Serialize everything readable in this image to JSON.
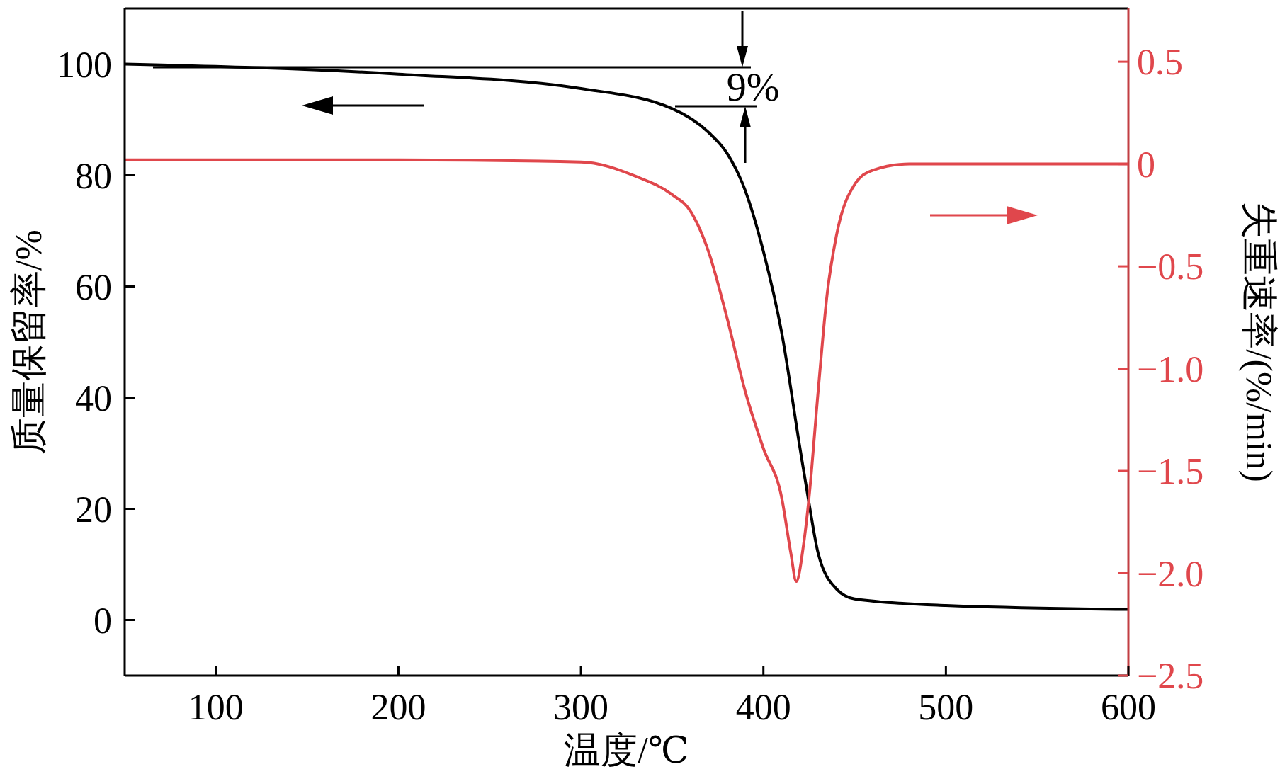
{
  "chart_data": {
    "type": "line",
    "xlabel": "温度/℃",
    "ylabel": "质量保留率/%",
    "y2label": "失重速率/(%/min)",
    "x": [
      50,
      200,
      300,
      350,
      370,
      380,
      390,
      400,
      410,
      420,
      425,
      430,
      440,
      450,
      500,
      600
    ],
    "series": [
      {
        "color": "#000000",
        "values": [
          100,
          98.2,
          95.6,
          92,
          87.7,
          84,
          77.3,
          66.3,
          51.7,
          31,
          21,
          12,
          5.6,
          3.8,
          2.6,
          1.9
        ]
      },
      {
        "color": "#e0474c",
        "axis": "y2",
        "x": [
          50,
          200,
          300,
          330,
          350,
          360,
          370,
          380,
          390,
          400,
          410,
          415,
          418,
          422,
          425,
          430,
          435,
          440,
          450,
          460,
          480,
          600
        ],
        "values": [
          0.02,
          0.02,
          0.01,
          -0.06,
          -0.15,
          -0.23,
          -0.43,
          -0.75,
          -1.11,
          -1.39,
          -1.63,
          -1.9,
          -2.04,
          -1.86,
          -1.63,
          -1.11,
          -0.63,
          -0.35,
          -0.1,
          -0.03,
          0.0,
          0.0
        ]
      }
    ],
    "xlim": [
      50,
      600
    ],
    "xticks": [
      100,
      200,
      300,
      400,
      500,
      600
    ],
    "ylim": [
      -10,
      110
    ],
    "yticks": [
      0,
      20,
      40,
      60,
      80,
      100
    ],
    "y2lim": [
      -2.5,
      0.76
    ],
    "y2ticks": [
      {
        "value": 0.5,
        "label": "0.5"
      },
      {
        "value": 0,
        "label": "0"
      },
      {
        "value": -0.5,
        "label": "−0.5"
      },
      {
        "value": -1,
        "label": "−1.0"
      },
      {
        "value": -1.5,
        "label": "−1.5"
      },
      {
        "value": -2,
        "label": "−2.0"
      },
      {
        "value": -2.5,
        "label": "−2.5"
      }
    ],
    "annotations": [
      "9%"
    ],
    "grid": false
  }
}
